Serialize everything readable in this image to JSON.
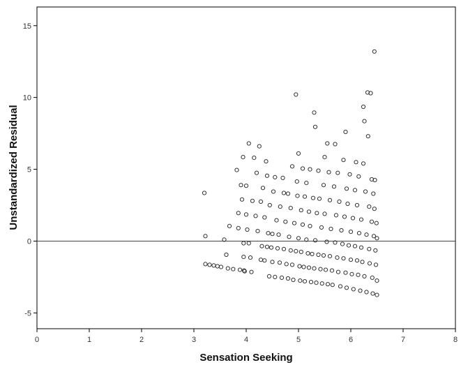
{
  "chart_data": {
    "type": "scatter",
    "title": "",
    "xlabel": "Sensation Seeking",
    "ylabel": "Unstandardized Residual",
    "xlim": [
      0,
      8
    ],
    "ylim": [
      -6.1,
      16.3
    ],
    "xticks": [
      0,
      1,
      2,
      3,
      4,
      5,
      6,
      7,
      8
    ],
    "yticks": [
      -5,
      0,
      5,
      10,
      15
    ],
    "reference_line_y": 0,
    "grid": false,
    "marker": "open-circle",
    "colors": {
      "marker": "#333333",
      "axis": "#000000",
      "reference_line": "#444444"
    },
    "points": [
      [
        3.2,
        3.35
      ],
      [
        3.22,
        0.35
      ],
      [
        3.22,
        -1.6
      ],
      [
        3.3,
        -1.65
      ],
      [
        3.38,
        -1.7
      ],
      [
        3.45,
        -1.75
      ],
      [
        3.52,
        -1.8
      ],
      [
        3.58,
        0.1
      ],
      [
        3.62,
        -0.95
      ],
      [
        3.65,
        -1.9
      ],
      [
        3.68,
        1.05
      ],
      [
        3.75,
        -1.95
      ],
      [
        3.82,
        4.95
      ],
      [
        3.85,
        1.95
      ],
      [
        3.85,
        0.9
      ],
      [
        3.88,
        -2.0
      ],
      [
        3.9,
        3.9
      ],
      [
        3.92,
        2.9
      ],
      [
        3.94,
        5.85
      ],
      [
        3.95,
        -0.15
      ],
      [
        3.95,
        -1.1
      ],
      [
        3.96,
        -2.05
      ],
      [
        3.97,
        -2.1
      ],
      [
        4.0,
        3.85
      ],
      [
        4.0,
        1.85
      ],
      [
        4.02,
        0.8
      ],
      [
        4.05,
        6.8
      ],
      [
        4.05,
        -0.15
      ],
      [
        4.08,
        -1.15
      ],
      [
        4.1,
        -2.15
      ],
      [
        4.12,
        2.8
      ],
      [
        4.15,
        5.8
      ],
      [
        4.18,
        1.75
      ],
      [
        4.2,
        4.75
      ],
      [
        4.22,
        0.7
      ],
      [
        4.25,
        6.6
      ],
      [
        4.28,
        2.75
      ],
      [
        4.28,
        -1.3
      ],
      [
        4.3,
        -0.35
      ],
      [
        4.32,
        3.7
      ],
      [
        4.35,
        -1.35
      ],
      [
        4.35,
        1.65
      ],
      [
        4.38,
        5.55
      ],
      [
        4.4,
        4.55
      ],
      [
        4.4,
        -0.4
      ],
      [
        4.42,
        0.55
      ],
      [
        4.44,
        -2.45
      ],
      [
        4.45,
        2.5
      ],
      [
        4.48,
        -0.45
      ],
      [
        4.5,
        0.5
      ],
      [
        4.5,
        -1.45
      ],
      [
        4.52,
        3.45
      ],
      [
        4.55,
        4.45
      ],
      [
        4.55,
        -2.5
      ],
      [
        4.58,
        1.45
      ],
      [
        4.6,
        -0.5
      ],
      [
        4.62,
        0.45
      ],
      [
        4.64,
        -1.5
      ],
      [
        4.65,
        2.4
      ],
      [
        4.68,
        -2.55
      ],
      [
        4.7,
        4.4
      ],
      [
        4.72,
        3.35
      ],
      [
        4.72,
        -0.55
      ],
      [
        4.75,
        1.35
      ],
      [
        4.77,
        -1.6
      ],
      [
        4.8,
        3.3
      ],
      [
        4.8,
        -2.6
      ],
      [
        4.82,
        0.3
      ],
      [
        4.85,
        2.3
      ],
      [
        4.85,
        -0.65
      ],
      [
        4.88,
        5.2
      ],
      [
        4.88,
        -1.65
      ],
      [
        4.9,
        -2.7
      ],
      [
        4.92,
        1.25
      ],
      [
        4.95,
        10.2
      ],
      [
        4.95,
        -0.7
      ],
      [
        4.97,
        4.15
      ],
      [
        4.98,
        3.15
      ],
      [
        5.0,
        6.1
      ],
      [
        5.0,
        0.2
      ],
      [
        5.02,
        -1.75
      ],
      [
        5.03,
        -2.75
      ],
      [
        5.05,
        2.15
      ],
      [
        5.05,
        -0.75
      ],
      [
        5.08,
        5.05
      ],
      [
        5.08,
        1.15
      ],
      [
        5.1,
        -1.8
      ],
      [
        5.12,
        3.1
      ],
      [
        5.12,
        -2.8
      ],
      [
        5.15,
        4.05
      ],
      [
        5.15,
        0.1
      ],
      [
        5.18,
        -0.85
      ],
      [
        5.2,
        2.05
      ],
      [
        5.2,
        -1.85
      ],
      [
        5.22,
        5.0
      ],
      [
        5.22,
        1.05
      ],
      [
        5.24,
        -2.85
      ],
      [
        5.26,
        -0.9
      ],
      [
        5.28,
        3.0
      ],
      [
        5.3,
        8.95
      ],
      [
        5.3,
        -1.9
      ],
      [
        5.32,
        7.95
      ],
      [
        5.32,
        0.05
      ],
      [
        5.34,
        -2.9
      ],
      [
        5.35,
        1.95
      ],
      [
        5.38,
        4.9
      ],
      [
        5.38,
        -0.95
      ],
      [
        5.4,
        2.95
      ],
      [
        5.42,
        -1.95
      ],
      [
        5.44,
        0.95
      ],
      [
        5.45,
        -2.95
      ],
      [
        5.48,
        3.9
      ],
      [
        5.48,
        -1.0
      ],
      [
        5.5,
        5.85
      ],
      [
        5.5,
        1.9
      ],
      [
        5.52,
        -2.0
      ],
      [
        5.54,
        -0.05
      ],
      [
        5.55,
        6.8
      ],
      [
        5.56,
        -3.0
      ],
      [
        5.58,
        4.8
      ],
      [
        5.6,
        2.85
      ],
      [
        5.6,
        -1.05
      ],
      [
        5.62,
        0.85
      ],
      [
        5.64,
        -2.05
      ],
      [
        5.65,
        -3.05
      ],
      [
        5.68,
        3.8
      ],
      [
        5.7,
        6.75
      ],
      [
        5.7,
        -0.1
      ],
      [
        5.72,
        1.8
      ],
      [
        5.74,
        -1.15
      ],
      [
        5.75,
        4.75
      ],
      [
        5.76,
        -2.15
      ],
      [
        5.78,
        2.75
      ],
      [
        5.8,
        -3.15
      ],
      [
        5.82,
        0.75
      ],
      [
        5.84,
        -0.2
      ],
      [
        5.86,
        5.65
      ],
      [
        5.86,
        -1.2
      ],
      [
        5.88,
        1.7
      ],
      [
        5.9,
        7.6
      ],
      [
        5.9,
        -2.2
      ],
      [
        5.92,
        3.65
      ],
      [
        5.92,
        -3.25
      ],
      [
        5.94,
        2.6
      ],
      [
        5.96,
        -0.3
      ],
      [
        5.98,
        4.65
      ],
      [
        6.0,
        0.65
      ],
      [
        6.0,
        -1.3
      ],
      [
        6.02,
        -2.3
      ],
      [
        6.04,
        1.6
      ],
      [
        6.05,
        -3.35
      ],
      [
        6.08,
        3.55
      ],
      [
        6.08,
        -0.35
      ],
      [
        6.1,
        5.5
      ],
      [
        6.12,
        -1.35
      ],
      [
        6.12,
        2.5
      ],
      [
        6.14,
        -2.35
      ],
      [
        6.15,
        4.5
      ],
      [
        6.16,
        0.55
      ],
      [
        6.18,
        -3.45
      ],
      [
        6.2,
        -0.45
      ],
      [
        6.2,
        1.5
      ],
      [
        6.22,
        -1.45
      ],
      [
        6.24,
        9.35
      ],
      [
        6.24,
        5.4
      ],
      [
        6.26,
        8.35
      ],
      [
        6.26,
        -2.45
      ],
      [
        6.28,
        3.45
      ],
      [
        6.3,
        -3.55
      ],
      [
        6.3,
        0.45
      ],
      [
        6.32,
        10.35
      ],
      [
        6.33,
        7.3
      ],
      [
        6.35,
        2.4
      ],
      [
        6.35,
        -0.55
      ],
      [
        6.36,
        -1.55
      ],
      [
        6.38,
        10.3
      ],
      [
        6.4,
        4.3
      ],
      [
        6.4,
        1.35
      ],
      [
        6.41,
        -2.55
      ],
      [
        6.42,
        -3.65
      ],
      [
        6.43,
        3.3
      ],
      [
        6.44,
        0.35
      ],
      [
        6.45,
        13.2
      ],
      [
        6.45,
        2.25
      ],
      [
        6.46,
        4.25
      ],
      [
        6.47,
        -0.65
      ],
      [
        6.48,
        -1.65
      ],
      [
        6.49,
        1.25
      ],
      [
        6.5,
        -2.75
      ],
      [
        6.5,
        0.2
      ],
      [
        6.5,
        -3.75
      ]
    ]
  }
}
